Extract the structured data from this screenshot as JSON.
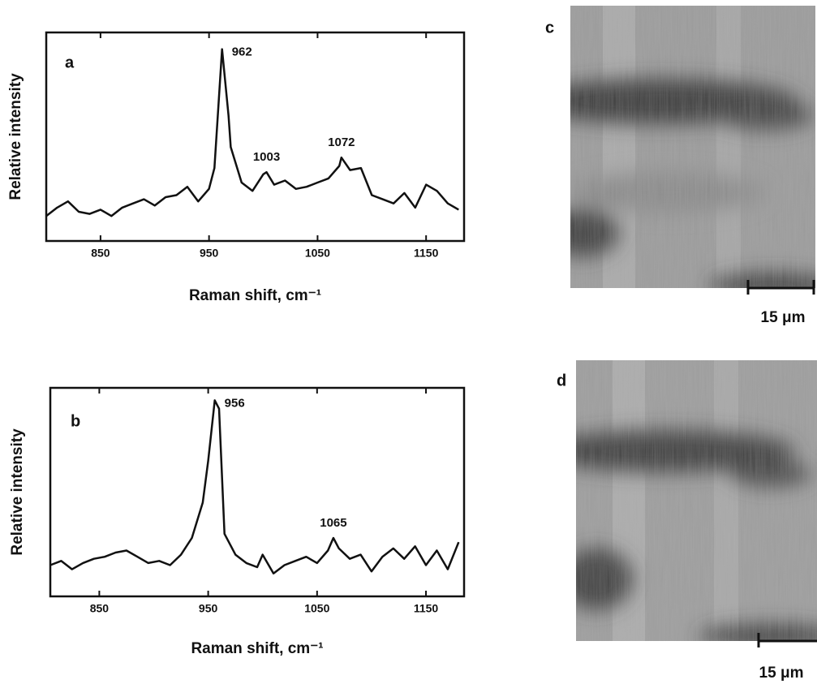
{
  "chart_data": [
    {
      "type": "line",
      "panel_label": "a",
      "xlabel": "Raman shift, cm⁻¹",
      "ylabel": "Relative intensity",
      "color": "#111111",
      "x": [
        800,
        810,
        820,
        830,
        840,
        850,
        860,
        870,
        880,
        890,
        900,
        910,
        920,
        930,
        940,
        950,
        955,
        962,
        968,
        970,
        980,
        990,
        1000,
        1003,
        1010,
        1020,
        1030,
        1040,
        1050,
        1060,
        1070,
        1072,
        1080,
        1090,
        1100,
        1110,
        1120,
        1130,
        1140,
        1150,
        1160,
        1170,
        1180
      ],
      "values": [
        1.2,
        1.6,
        1.9,
        1.4,
        1.3,
        1.5,
        1.2,
        1.6,
        1.8,
        2.0,
        1.7,
        2.1,
        2.2,
        2.6,
        1.9,
        2.5,
        3.5,
        9.2,
        6.0,
        4.5,
        2.8,
        2.4,
        3.2,
        3.3,
        2.7,
        2.9,
        2.5,
        2.6,
        2.8,
        3.0,
        3.6,
        4.0,
        3.4,
        3.5,
        2.2,
        2.0,
        1.8,
        2.3,
        1.6,
        2.7,
        2.4,
        1.8,
        1.5
      ],
      "xlim": [
        800,
        1185
      ],
      "ylim": [
        0,
        10
      ],
      "xticks": [
        850,
        950,
        1050,
        1150
      ],
      "annotations": [
        "962",
        "1003",
        "1072"
      ]
    },
    {
      "type": "line",
      "panel_label": "b",
      "xlabel": "Raman shift, cm⁻¹",
      "ylabel": "Relative intensity",
      "color": "#111111",
      "x": [
        805,
        815,
        825,
        835,
        845,
        855,
        865,
        875,
        885,
        895,
        905,
        915,
        925,
        935,
        945,
        950,
        956,
        960,
        965,
        975,
        985,
        995,
        1000,
        1010,
        1020,
        1030,
        1040,
        1050,
        1060,
        1065,
        1070,
        1080,
        1090,
        1100,
        1110,
        1120,
        1130,
        1140,
        1150,
        1160,
        1170,
        1180
      ],
      "values": [
        1.5,
        1.7,
        1.3,
        1.6,
        1.8,
        1.9,
        2.1,
        2.2,
        1.9,
        1.6,
        1.7,
        1.5,
        2.0,
        2.8,
        4.5,
        6.5,
        9.4,
        9.0,
        3.0,
        2.0,
        1.6,
        1.4,
        2.0,
        1.1,
        1.5,
        1.7,
        1.9,
        1.6,
        2.2,
        2.8,
        2.3,
        1.8,
        2.0,
        1.2,
        1.9,
        2.3,
        1.8,
        2.4,
        1.5,
        2.2,
        1.3,
        2.6
      ],
      "xlim": [
        805,
        1185
      ],
      "ylim": [
        0,
        10
      ],
      "xticks": [
        850,
        950,
        1050,
        1150
      ],
      "annotations": [
        "956",
        "1065"
      ]
    }
  ],
  "images": [
    {
      "label": "c",
      "scale_bar": "15 μm"
    },
    {
      "label": "d",
      "scale_bar": "15 μm"
    }
  ]
}
